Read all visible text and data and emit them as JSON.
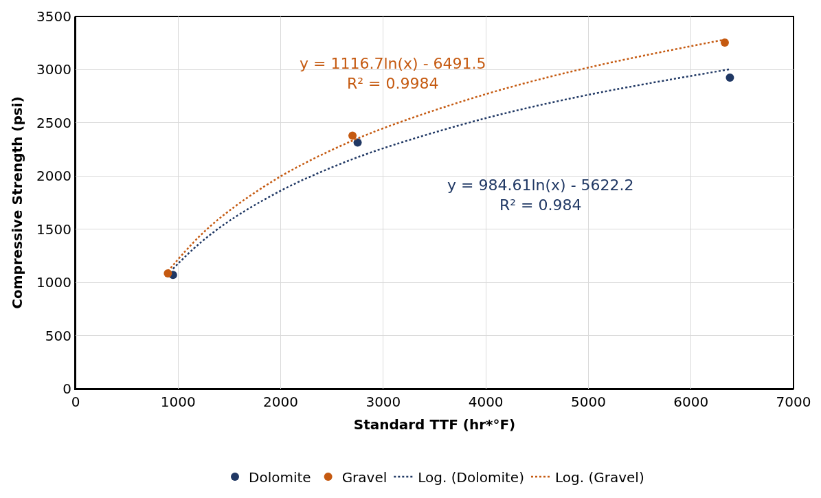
{
  "chart_data": {
    "type": "scatter",
    "xlabel": "Standard TTF (hr*°F)",
    "ylabel": "Compressive Strength (psi)",
    "xlim": [
      0,
      7000
    ],
    "xticks": [
      0,
      1000,
      2000,
      3000,
      4000,
      5000,
      6000,
      7000
    ],
    "ylim": [
      0,
      3500
    ],
    "yticks": [
      0,
      500,
      1000,
      1500,
      2000,
      2500,
      3000,
      3500
    ],
    "grid": true,
    "legend": "bottom",
    "series": [
      {
        "name": "Dolomite",
        "marker": "circle",
        "color": "#203864",
        "x": [
          950,
          2750,
          6380
        ],
        "values": [
          1070,
          2315,
          2925
        ]
      },
      {
        "name": "Gravel",
        "marker": "circle",
        "color": "#c55a11",
        "x": [
          900,
          2700,
          6330
        ],
        "values": [
          1085,
          2380,
          3255
        ]
      },
      {
        "name": "Log. (Dolomite)",
        "type": "line",
        "marker": "none",
        "line_style": "dotted",
        "color": "#203864",
        "x": [
          950,
          1200,
          1500,
          2000,
          2500,
          3000,
          4000,
          5000,
          6380
        ],
        "values": [
          1128,
          1359,
          1579,
          1862,
          2082,
          2261,
          2544,
          2764,
          3004
        ]
      },
      {
        "name": "Log. (Gravel)",
        "type": "line",
        "marker": "none",
        "line_style": "dotted",
        "color": "#c55a11",
        "x": [
          900,
          1200,
          1500,
          2000,
          2500,
          3000,
          4000,
          5000,
          6330
        ],
        "values": [
          1105,
          1426,
          1675,
          1997,
          2246,
          2449,
          2770,
          3020,
          3283
        ]
      }
    ],
    "annotations": [
      "y = 984.61ln(x) - 5622.2\nR² = 0.984",
      "y = 1116.7ln(x) - 6491.5\nR² = 0.9984"
    ]
  }
}
